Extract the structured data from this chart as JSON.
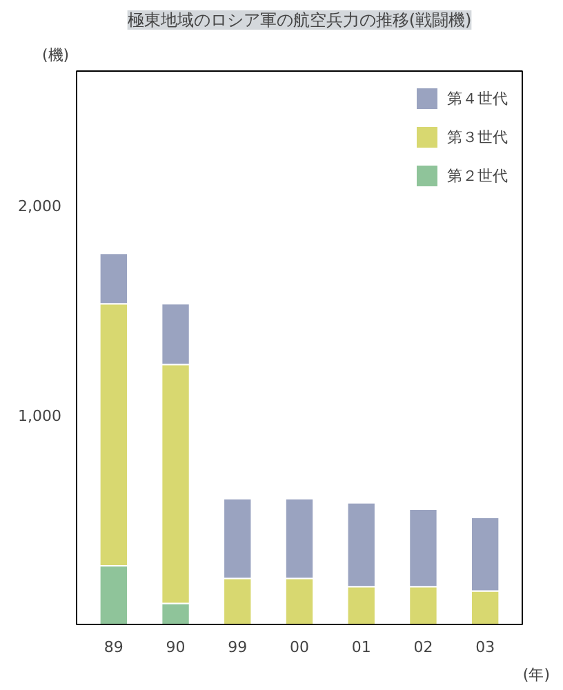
{
  "chart_data": {
    "type": "bar",
    "stacked": true,
    "title": "極東地域のロシア軍の航空兵力の推移(戦闘機)",
    "ylabel": "(機)",
    "xlabel": "(年)",
    "categories": [
      "89",
      "90",
      "99",
      "00",
      "01",
      "02",
      "03"
    ],
    "series": [
      {
        "name": "第２世代",
        "color": "#8fc49a",
        "values": [
          280,
          100,
          null,
          null,
          null,
          null,
          null
        ]
      },
      {
        "name": "第３世代",
        "color": "#d8d870",
        "values": [
          1250,
          1140,
          220,
          220,
          180,
          180,
          160
        ]
      },
      {
        "name": "第４世代",
        "color": "#9aa3c0",
        "values": [
          240,
          290,
          380,
          380,
          400,
          370,
          350
        ]
      }
    ],
    "ylim": [
      0,
      2640
    ],
    "yticks": [
      {
        "value": 0,
        "label": null
      },
      {
        "value": 1000,
        "label": "1,000"
      },
      {
        "value": 2000,
        "label": "2,000"
      }
    ],
    "grid": false,
    "legend": "top right"
  }
}
